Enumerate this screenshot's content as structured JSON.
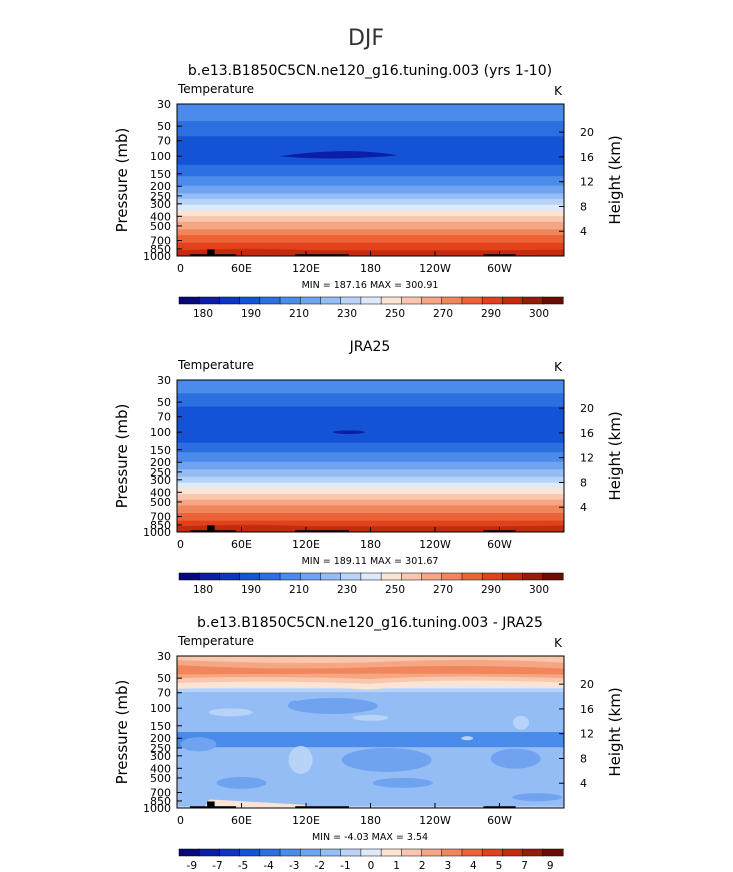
{
  "figure": {
    "title": "DJF"
  },
  "palettes": {
    "temp": [
      "#08087c",
      "#0b1ea8",
      "#0d35c4",
      "#1452d6",
      "#2b6fe0",
      "#4b8bea",
      "#6fa3f0",
      "#94bcf5",
      "#b8d3f8",
      "#dceaf9",
      "#fbe4d4",
      "#f8c7ad",
      "#f5a784",
      "#f1865c",
      "#ec6338",
      "#e2421b",
      "#c42b0e",
      "#951e08",
      "#6a0e04"
    ],
    "diff": [
      "#08087c",
      "#0b1ea8",
      "#0d35c4",
      "#1452d6",
      "#2b6fe0",
      "#4b8bea",
      "#6fa3f0",
      "#94bcf5",
      "#b8d3f8",
      "#dceaf9",
      "#fbe4d4",
      "#f8c7ad",
      "#f5a784",
      "#f1865c",
      "#ec6338",
      "#e2421b",
      "#c42b0e",
      "#951e08",
      "#6a0e04"
    ],
    "topography": "#000000"
  },
  "chart_data": [
    {
      "type": "heatmap",
      "title": "b.e13.B1850C5CN.ne120_g16.tuning.003 (yrs 1-10)",
      "left_label": "Temperature",
      "right_label": "K",
      "ylabel": "Pressure  (mb)",
      "ylabel_right": "Height  (km)",
      "yticks": [
        "30",
        "50",
        "70",
        "100",
        "150",
        "200",
        "250",
        "300",
        "400",
        "500",
        "700",
        "850",
        "1000"
      ],
      "yticks_right": [
        "20",
        "16",
        "12",
        "8",
        "4"
      ],
      "xticks": [
        "0",
        "60E",
        "120E",
        "180",
        "120W",
        "60W"
      ],
      "xlim": [
        0,
        360
      ],
      "stats": "MIN = 187.16   MAX = 300.91",
      "colorbar_labels": [
        "180",
        "190",
        "210",
        "230",
        "250",
        "270",
        "290",
        "300"
      ],
      "profile": [
        {
          "p": 30,
          "value": 215
        },
        {
          "p": 40,
          "value": 212
        },
        {
          "p": 50,
          "value": 207
        },
        {
          "p": 60,
          "value": 203
        },
        {
          "p": 70,
          "value": 200
        },
        {
          "p": 85,
          "value": 197
        },
        {
          "p": 100,
          "value": 198
        },
        {
          "p": 125,
          "value": 203
        },
        {
          "p": 150,
          "value": 208
        },
        {
          "p": 175,
          "value": 213
        },
        {
          "p": 200,
          "value": 217
        },
        {
          "p": 250,
          "value": 226
        },
        {
          "p": 300,
          "value": 235
        },
        {
          "p": 350,
          "value": 243
        },
        {
          "p": 400,
          "value": 250
        },
        {
          "p": 450,
          "value": 256
        },
        {
          "p": 500,
          "value": 261
        },
        {
          "p": 600,
          "value": 269
        },
        {
          "p": 700,
          "value": 275
        },
        {
          "p": 850,
          "value": 283
        },
        {
          "p": 925,
          "value": 287
        },
        {
          "p": 1000,
          "value": 291
        }
      ]
    },
    {
      "type": "heatmap",
      "title": "JRA25",
      "left_label": "Temperature",
      "right_label": "K",
      "ylabel": "Pressure  (mb)",
      "ylabel_right": "Height  (km)",
      "yticks": [
        "30",
        "50",
        "70",
        "100",
        "150",
        "200",
        "250",
        "300",
        "400",
        "500",
        "700",
        "850",
        "1000"
      ],
      "yticks_right": [
        "20",
        "16",
        "12",
        "8",
        "4"
      ],
      "xticks": [
        "0",
        "60E",
        "120E",
        "180",
        "120W",
        "60W"
      ],
      "xlim": [
        0,
        360
      ],
      "stats": "MIN = 189.11   MAX = 301.67",
      "colorbar_labels": [
        "180",
        "190",
        "210",
        "230",
        "250",
        "270",
        "290",
        "300"
      ],
      "profile": [
        {
          "p": 30,
          "value": 214
        },
        {
          "p": 40,
          "value": 210
        },
        {
          "p": 50,
          "value": 205
        },
        {
          "p": 60,
          "value": 201
        },
        {
          "p": 70,
          "value": 199
        },
        {
          "p": 85,
          "value": 197
        },
        {
          "p": 100,
          "value": 197
        },
        {
          "p": 125,
          "value": 202
        },
        {
          "p": 150,
          "value": 207
        },
        {
          "p": 175,
          "value": 212
        },
        {
          "p": 200,
          "value": 216
        },
        {
          "p": 250,
          "value": 225
        },
        {
          "p": 300,
          "value": 234
        },
        {
          "p": 350,
          "value": 242
        },
        {
          "p": 400,
          "value": 249
        },
        {
          "p": 450,
          "value": 255
        },
        {
          "p": 500,
          "value": 260
        },
        {
          "p": 600,
          "value": 268
        },
        {
          "p": 700,
          "value": 274
        },
        {
          "p": 850,
          "value": 282
        },
        {
          "p": 925,
          "value": 286
        },
        {
          "p": 1000,
          "value": 290
        }
      ]
    },
    {
      "type": "heatmap",
      "title": "b.e13.B1850C5CN.ne120_g16.tuning.003 - JRA25",
      "left_label": "Temperature",
      "right_label": "K",
      "ylabel": "Pressure  (mb)",
      "ylabel_right": "Height  (km)",
      "yticks": [
        "30",
        "50",
        "70",
        "100",
        "150",
        "200",
        "250",
        "300",
        "400",
        "500",
        "700",
        "850",
        "1000"
      ],
      "yticks_right": [
        "20",
        "16",
        "12",
        "8",
        "4"
      ],
      "xticks": [
        "0",
        "60E",
        "120E",
        "180",
        "120W",
        "60W"
      ],
      "xlim": [
        0,
        360
      ],
      "stats": "MIN =  -4.03   MAX =   3.54",
      "colorbar_labels": [
        "-9",
        "-7",
        "-5",
        "-4",
        "-3",
        "-2",
        "-1",
        "0",
        "1",
        "2",
        "3",
        "4",
        "5",
        "7",
        "9"
      ],
      "profile": [
        {
          "p": 30,
          "value": 1.5
        },
        {
          "p": 40,
          "value": 2.2
        },
        {
          "p": 50,
          "value": 1.7
        },
        {
          "p": 60,
          "value": 0.6
        },
        {
          "p": 70,
          "value": -0.8
        },
        {
          "p": 100,
          "value": -1.1
        },
        {
          "p": 150,
          "value": -1.4
        },
        {
          "p": 200,
          "value": -1.6
        },
        {
          "p": 300,
          "value": -1.4
        },
        {
          "p": 400,
          "value": -1.2
        },
        {
          "p": 500,
          "value": -1.4
        },
        {
          "p": 700,
          "value": -1.3
        },
        {
          "p": 850,
          "value": -0.9
        },
        {
          "p": 1000,
          "value": -0.4
        }
      ]
    }
  ]
}
